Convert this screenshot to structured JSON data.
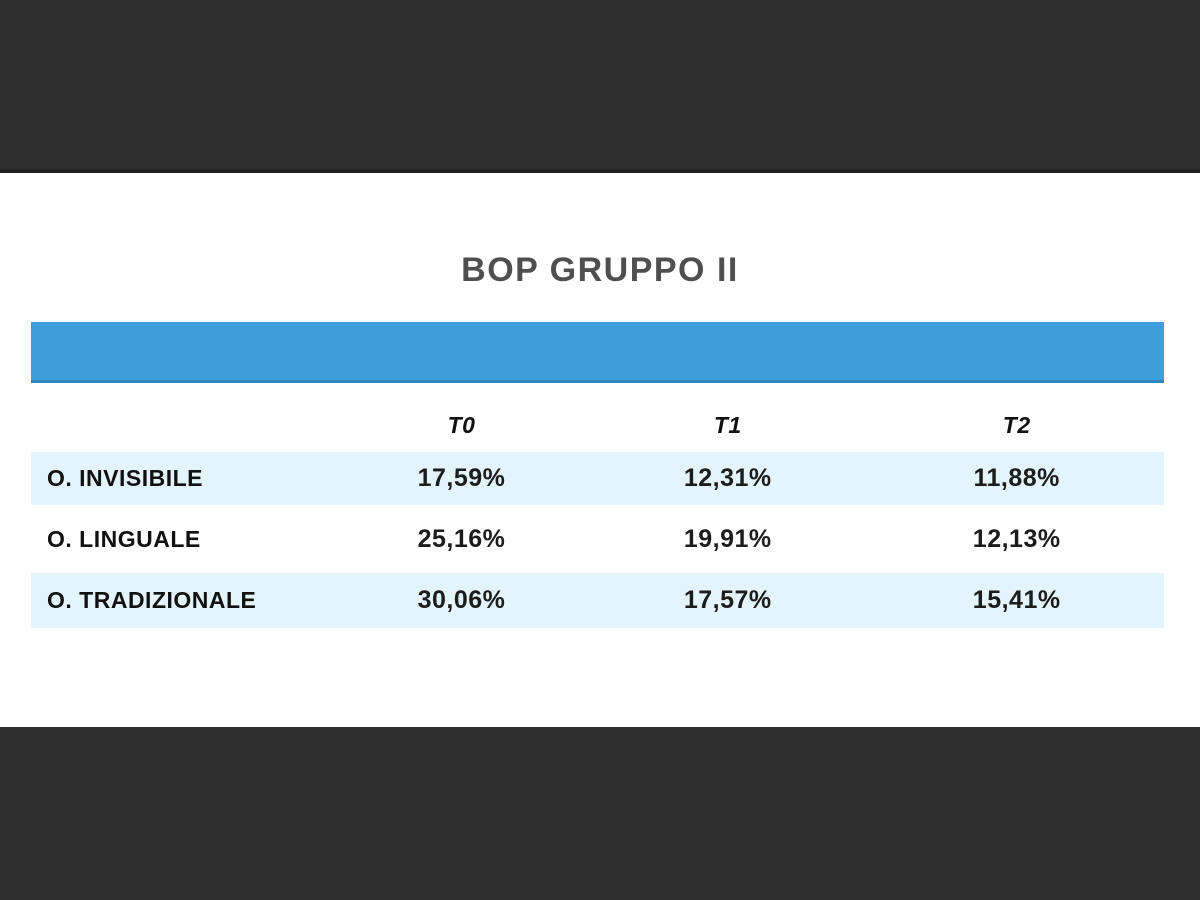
{
  "slide": {
    "title": "BOP GRUPPO II",
    "colors": {
      "frame_dark": "#2f2f2f",
      "frame_edge_line": "#242424",
      "header_band_blue": "#3d9ed9",
      "row_highlight_blue": "#e3f4fc",
      "title_gray": "#4f4f4f",
      "text_black": "#1c1c1c"
    },
    "table": {
      "columns": [
        "T0",
        "T1",
        "T2"
      ],
      "rows": [
        {
          "label": "O. INVISIBILE",
          "values": [
            "17,59%",
            "12,31%",
            "11,88%"
          ]
        },
        {
          "label": "O. LINGUALE",
          "values": [
            "25,16%",
            "19,91%",
            "12,13%"
          ]
        },
        {
          "label": "O. TRADIZIONALE",
          "values": [
            "30,06%",
            "17,57%",
            "15,41%"
          ]
        }
      ]
    }
  },
  "chart_data": {
    "type": "table",
    "title": "BOP GRUPPO II",
    "columns": [
      "T0",
      "T1",
      "T2"
    ],
    "row_labels": [
      "O. INVISIBILE",
      "O. LINGUALE",
      "O. TRADIZIONALE"
    ],
    "values_percent": [
      [
        17.59,
        12.31,
        11.88
      ],
      [
        25.16,
        19.91,
        12.13
      ],
      [
        30.06,
        17.57,
        15.41
      ]
    ],
    "display_values": [
      [
        "17,59%",
        "12,31%",
        "11,88%"
      ],
      [
        "25,16%",
        "19,91%",
        "12,13%"
      ],
      [
        "30,06%",
        "17,57%",
        "15,41%"
      ]
    ],
    "layout": {
      "header_band": "solid blue bar above column headers, no text",
      "row_striping": "rows 1 and 3 light blue, row 2 white",
      "value_alignment": "center",
      "label_alignment": "left"
    }
  }
}
